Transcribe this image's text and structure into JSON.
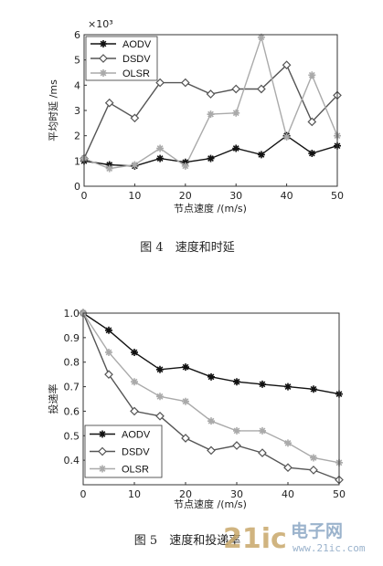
{
  "chart_data": [
    {
      "type": "line",
      "x": [
        0,
        5,
        10,
        15,
        20,
        25,
        30,
        35,
        40,
        45,
        50
      ],
      "xlim": [
        0,
        50
      ],
      "ylim": [
        0,
        6
      ],
      "xticks": [
        "0",
        "10",
        "20",
        "30",
        "40",
        "50"
      ],
      "yticks": [
        "0",
        "1",
        "2",
        "3",
        "4",
        "5",
        "6"
      ],
      "y_multiplier": "×10³",
      "xlabel": "节点速度 /(m/s)",
      "ylabel": "平均时延 /ms",
      "legend_position": "top-left",
      "caption": "图 4　速度和时延",
      "series": [
        {
          "name": "AODV",
          "values": [
            1.0,
            0.85,
            0.8,
            1.1,
            0.95,
            1.1,
            1.5,
            1.25,
            2.0,
            1.3,
            1.6
          ],
          "color": "#111111",
          "marker": "star"
        },
        {
          "name": "DSDV",
          "values": [
            1.1,
            3.3,
            2.7,
            4.1,
            4.1,
            3.65,
            3.85,
            3.85,
            4.8,
            2.55,
            3.6
          ],
          "color": "#555555",
          "marker": "diamond"
        },
        {
          "name": "OLSR",
          "values": [
            1.1,
            0.7,
            0.85,
            1.5,
            0.8,
            2.85,
            2.9,
            5.9,
            1.95,
            4.4,
            2.0
          ],
          "color": "#aaaaaa",
          "marker": "star"
        }
      ]
    },
    {
      "type": "line",
      "x": [
        0,
        5,
        10,
        15,
        20,
        25,
        30,
        35,
        40,
        45,
        50
      ],
      "xlim": [
        0,
        50
      ],
      "ylim": [
        0.3,
        1.0
      ],
      "xticks": [
        "0",
        "10",
        "20",
        "30",
        "40",
        "50"
      ],
      "yticks": [
        "0.4",
        "0.5",
        "0.6",
        "0.7",
        "0.8",
        "0.9",
        "1.0"
      ],
      "xlabel": "节点速度 /(m/s)",
      "ylabel": "投递率",
      "legend_position": "bottom-left",
      "caption": "图 5　速度和投递率",
      "series": [
        {
          "name": "AODV",
          "values": [
            1.0,
            0.93,
            0.84,
            0.77,
            0.78,
            0.74,
            0.72,
            0.71,
            0.7,
            0.69,
            0.67
          ],
          "color": "#111111",
          "marker": "star"
        },
        {
          "name": "DSDV",
          "values": [
            1.0,
            0.75,
            0.6,
            0.58,
            0.49,
            0.44,
            0.46,
            0.43,
            0.37,
            0.36,
            0.32
          ],
          "color": "#555555",
          "marker": "diamond"
        },
        {
          "name": "OLSR",
          "values": [
            1.0,
            0.84,
            0.72,
            0.66,
            0.64,
            0.56,
            0.52,
            0.52,
            0.47,
            0.41,
            0.39
          ],
          "color": "#aaaaaa",
          "marker": "star"
        }
      ]
    }
  ],
  "watermark": {
    "brand_number": "21ic",
    "brand_cn": "电子网",
    "url": "www.21ic.com",
    "color_main": "#c8a86a",
    "color_cn": "#8aa6c4"
  }
}
